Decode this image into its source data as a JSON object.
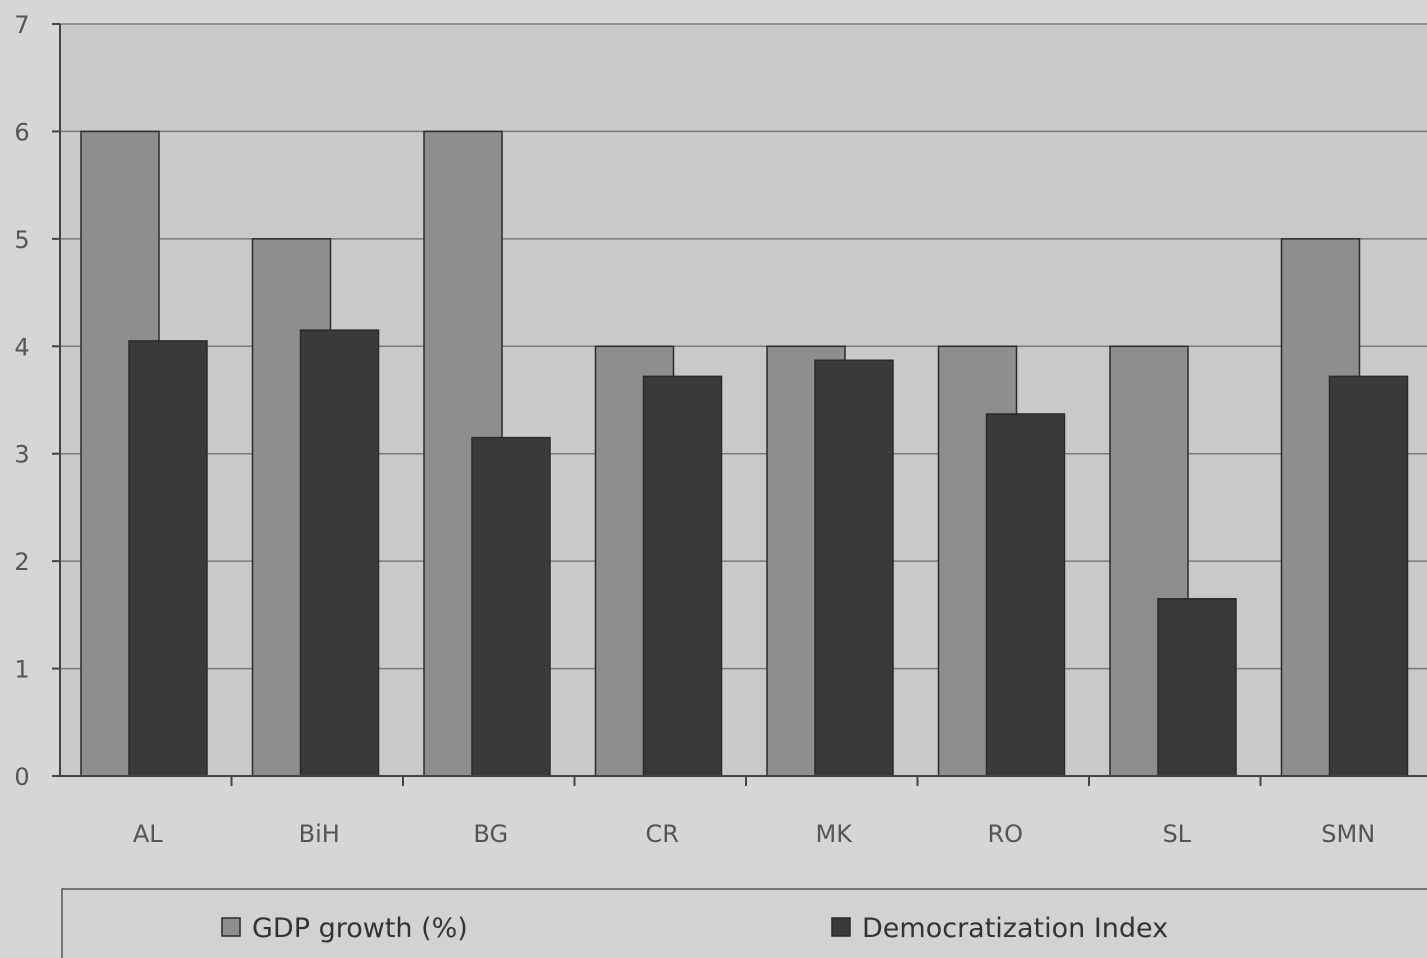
{
  "chart_data": {
    "type": "bar",
    "categories": [
      "AL",
      "BiH",
      "BG",
      "CR",
      "MK",
      "RO",
      "SL",
      "SMN"
    ],
    "series": [
      {
        "name": "GDP growth (%)",
        "values": [
          6,
          5,
          6,
          4,
          4,
          4,
          4,
          5
        ]
      },
      {
        "name": "Democratization Index",
        "values": [
          4.05,
          4.15,
          3.15,
          3.72,
          3.87,
          3.37,
          1.65,
          3.72
        ]
      }
    ],
    "ylim": [
      0,
      7
    ],
    "yticks": [
      "0",
      "1",
      "2",
      "3",
      "4",
      "5",
      "6",
      "7"
    ],
    "grid": true,
    "legend_position": "bottom",
    "colors": {
      "GDP growth (%)": "#8e8e8e",
      "Democratization Index": "#3a3a3a",
      "plot_background": "#c8c8c8",
      "gridline": "#7a7a7a"
    }
  }
}
